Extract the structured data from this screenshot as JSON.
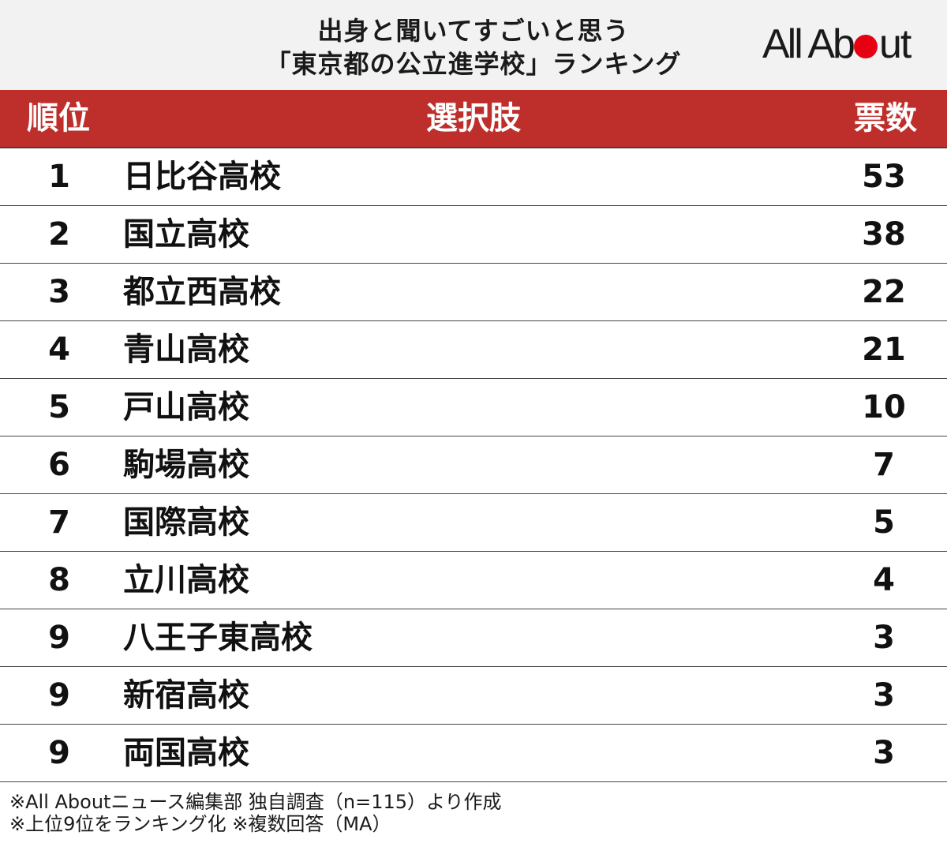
{
  "header": {
    "title_line1": "出身と聞いてすごいと思う",
    "title_line2": "「東京都の公立進学校」ランキング",
    "logo_text_start": "All Ab",
    "logo_text_end": "ut",
    "logo_dot_color": "#e60012"
  },
  "columns": {
    "rank": "順位",
    "choice": "選択肢",
    "votes": "票数"
  },
  "rows": [
    {
      "rank": "1",
      "name": "日比谷高校",
      "votes": "53"
    },
    {
      "rank": "2",
      "name": "国立高校",
      "votes": "38"
    },
    {
      "rank": "3",
      "name": "都立西高校",
      "votes": "22"
    },
    {
      "rank": "4",
      "name": "青山高校",
      "votes": "21"
    },
    {
      "rank": "5",
      "name": "戸山高校",
      "votes": "10"
    },
    {
      "rank": "6",
      "name": "駒場高校",
      "votes": "7"
    },
    {
      "rank": "7",
      "name": "国際高校",
      "votes": "5"
    },
    {
      "rank": "8",
      "name": "立川高校",
      "votes": "4"
    },
    {
      "rank": "9",
      "name": "八王子東高校",
      "votes": "3"
    },
    {
      "rank": "9",
      "name": "新宿高校",
      "votes": "3"
    },
    {
      "rank": "9",
      "name": "両国高校",
      "votes": "3"
    }
  ],
  "footnotes": {
    "line1": "※All Aboutニュース編集部 独自調査（n=115）より作成",
    "line2": "※上位9位をランキング化 ※複数回答（MA）"
  },
  "colors": {
    "header_bar": "#be2f2c",
    "title_background": "#f2f2f2"
  }
}
